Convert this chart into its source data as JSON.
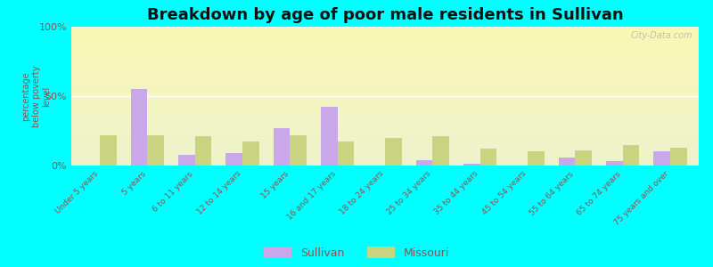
{
  "title": "Breakdown by age of poor male residents in Sullivan",
  "ylabel": "percentage\nbelow poverty\nlevel",
  "categories": [
    "Under 5 years",
    "5 years",
    "6 to 11 years",
    "12 to 14 years",
    "15 years",
    "16 and 17 years",
    "18 to 24 years",
    "25 to 34 years",
    "35 to 44 years",
    "45 to 54 years",
    "55 to 64 years",
    "65 to 74 years",
    "75 years and over"
  ],
  "sullivan": [
    0,
    55,
    8,
    9,
    27,
    42,
    0,
    4,
    1,
    0,
    6,
    3,
    10
  ],
  "missouri": [
    22,
    22,
    21,
    17,
    22,
    17,
    20,
    21,
    12,
    10,
    11,
    15,
    13
  ],
  "sullivan_color": "#c8a8e8",
  "missouri_color": "#c8d480",
  "outer_bg_color": "#00ffff",
  "ylim": [
    0,
    100
  ],
  "ytick_labels": [
    "0%",
    "50%",
    "100%"
  ],
  "ytick_vals": [
    0,
    50,
    100
  ],
  "bar_width": 0.35,
  "title_fontsize": 13,
  "legend_labels": [
    "Sullivan",
    "Missouri"
  ],
  "watermark": "City-Data.com",
  "tick_color": "#885555",
  "label_color": "#885555"
}
